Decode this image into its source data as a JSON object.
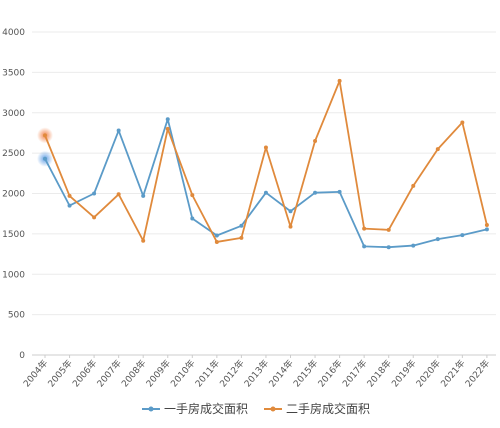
{
  "chart_data": {
    "type": "line",
    "categories": [
      "2004年",
      "2005年",
      "2006年",
      "2007年",
      "2008年",
      "2009年",
      "2010年",
      "2011年",
      "2012年",
      "2013年",
      "2014年",
      "2015年",
      "2016年",
      "2017年",
      "2018年",
      "2019年",
      "2020年",
      "2021年",
      "2022年"
    ],
    "series": [
      {
        "name": "一手房成交面积",
        "color": "#5b9bc8",
        "values": [
          2430,
          1850,
          2000,
          2780,
          1970,
          2920,
          1690,
          1480,
          1600,
          2010,
          1780,
          2010,
          2020,
          1345,
          1335,
          1355,
          1435,
          1485,
          1555
        ]
      },
      {
        "name": "二手房成交面积",
        "color": "#e08a3c",
        "values": [
          2720,
          1970,
          1705,
          1990,
          1415,
          2800,
          1980,
          1400,
          1450,
          2570,
          1590,
          2650,
          3395,
          1565,
          1550,
          2095,
          2550,
          2880,
          1610
        ]
      }
    ],
    "yticks": [
      0,
      500,
      1000,
      1500,
      2000,
      2500,
      3000,
      3500,
      4000
    ],
    "ylim": [
      0,
      4000
    ],
    "grid": true,
    "legend_position": "bottom"
  }
}
